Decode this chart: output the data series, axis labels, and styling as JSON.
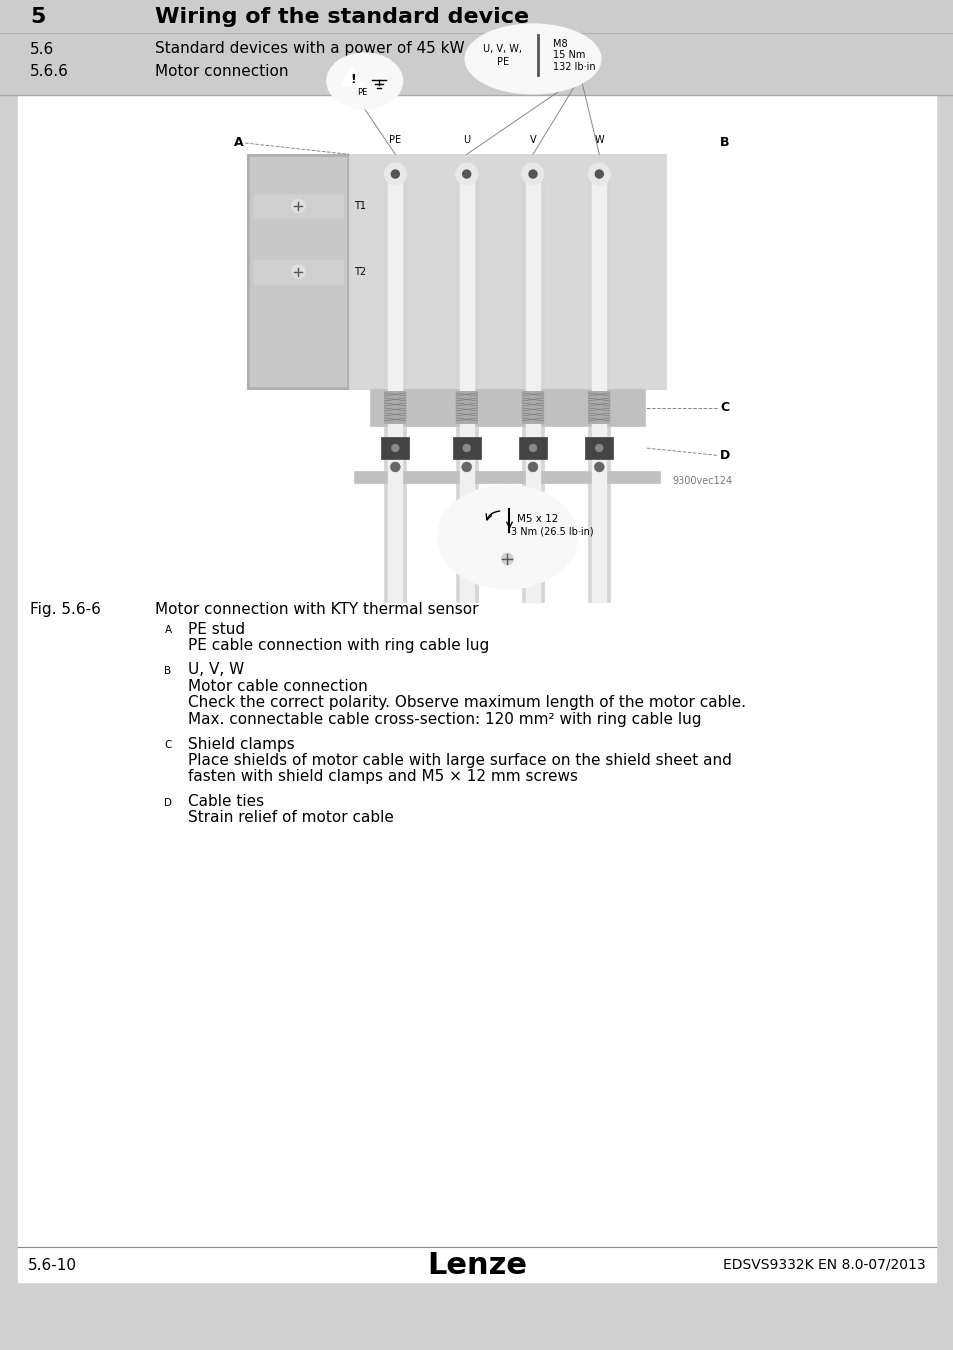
{
  "page_bg": "#d0d0d0",
  "content_bg": "#ffffff",
  "header_bg": "#cccccc",
  "title_main": "Wiring of the standard device",
  "title_num": "5",
  "subtitle1_num": "5.6",
  "subtitle1": "Standard devices with a power of 45 kW",
  "subtitle2_num": "5.6.6",
  "subtitle2": "Motor connection",
  "fig_label": "Fig. 5.6-6",
  "fig_caption": "Motor connection with KTY thermal sensor",
  "diagram_ref": "9300vec124",
  "labels": {
    "A": [
      "PE stud",
      "PE cable connection with ring cable lug"
    ],
    "B": [
      "U, V, W",
      "Motor cable connection",
      "Check the correct polarity. Observe maximum length of the motor cable.",
      "Max. connectable cable cross-section: 120 mm² with ring cable lug"
    ],
    "C": [
      "Shield clamps",
      "Place shields of motor cable with large surface on the shield sheet and",
      "fasten with shield clamps and M5 × 12 mm screws"
    ],
    "D": [
      "Cable ties",
      "Strain relief of motor cable"
    ]
  },
  "footer_left": "5.6-10",
  "footer_center": "Lenze",
  "footer_right": "EDSVS9332K EN 8.0-07/2013",
  "text_color": "#000000"
}
